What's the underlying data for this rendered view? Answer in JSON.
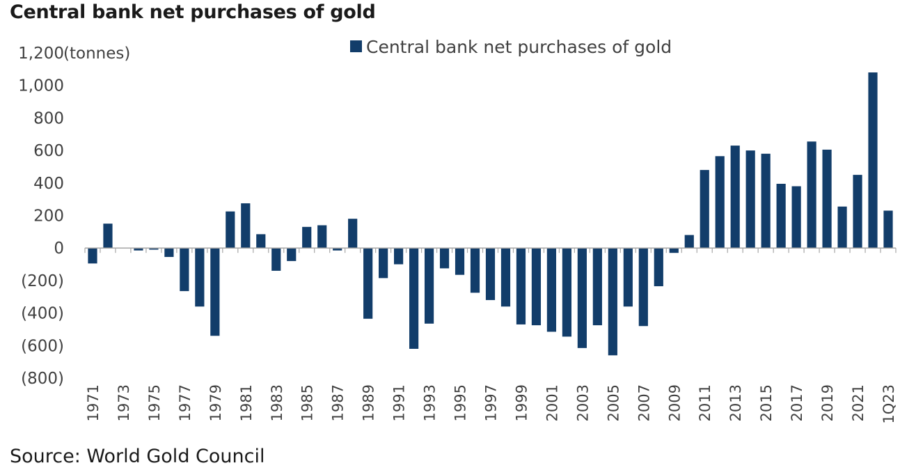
{
  "title": "Central bank net purchases of gold",
  "source": "Source: World Gold Council",
  "chart_data": {
    "type": "bar",
    "title": "Central bank net purchases of gold",
    "ylabel": "(tonnes)",
    "xlabel": "",
    "ylim": [
      -800,
      1200
    ],
    "yticks": [
      1200,
      1000,
      800,
      600,
      400,
      200,
      0,
      -200,
      -400,
      -600,
      -800
    ],
    "ytick_labels": [
      "1,200",
      "1,000",
      "800",
      "600",
      "400",
      "200",
      "0",
      "(200)",
      "(400)",
      "(600)",
      "(800)"
    ],
    "legend": "top-center",
    "grid": false,
    "bar_color": "#123d6a",
    "categories": [
      "1971",
      "1972",
      "1973",
      "1974",
      "1975",
      "1976",
      "1977",
      "1978",
      "1979",
      "1980",
      "1981",
      "1982",
      "1983",
      "1984",
      "1985",
      "1986",
      "1987",
      "1988",
      "1989",
      "1990",
      "1991",
      "1992",
      "1993",
      "1994",
      "1995",
      "1996",
      "1997",
      "1998",
      "1999",
      "2000",
      "2001",
      "2002",
      "2003",
      "2004",
      "2005",
      "2006",
      "2007",
      "2008",
      "2009",
      "2010",
      "2011",
      "2012",
      "2013",
      "2014",
      "2015",
      "2016",
      "2017",
      "2018",
      "2019",
      "2020",
      "2021",
      "2022",
      "1Q23"
    ],
    "tick_labels": [
      "1971",
      "1973",
      "1975",
      "1977",
      "1979",
      "1981",
      "1983",
      "1985",
      "1987",
      "1989",
      "1991",
      "1993",
      "1995",
      "1997",
      "1999",
      "2001",
      "2003",
      "2005",
      "2007",
      "2009",
      "2011",
      "2013",
      "2015",
      "2017",
      "2019",
      "2021",
      "1Q23"
    ],
    "series": [
      {
        "name": "Central bank net purchases of gold",
        "values": [
          -95,
          150,
          0,
          -15,
          -10,
          -55,
          -265,
          -360,
          -540,
          225,
          275,
          85,
          -140,
          -80,
          130,
          140,
          -15,
          180,
          -435,
          -185,
          -100,
          -620,
          -465,
          -125,
          -165,
          -275,
          -320,
          -360,
          -470,
          -475,
          -515,
          -545,
          -615,
          -475,
          -660,
          -360,
          -480,
          -235,
          -30,
          80,
          480,
          565,
          630,
          600,
          580,
          395,
          380,
          655,
          605,
          255,
          450,
          1080,
          230
        ]
      }
    ]
  }
}
